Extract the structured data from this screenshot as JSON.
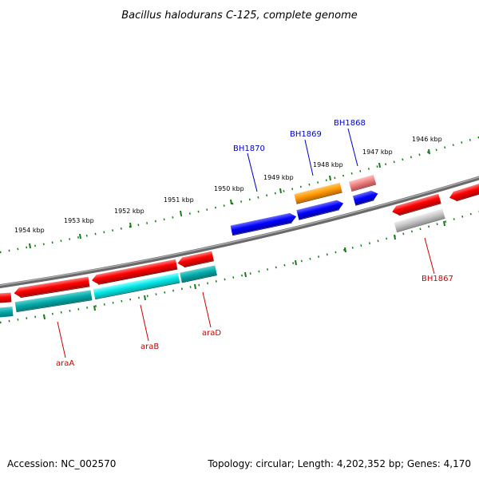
{
  "title": "Bacillus halodurans C-125, complete genome",
  "footer": {
    "accession": "Accession: NC_002570",
    "topology": "Topology: circular; Length: 4,202,352 bp; Genes: 4,170"
  },
  "colors": {
    "backbone": "#808080",
    "tick": "#1a7a1a",
    "label_forward": "#0000cc",
    "label_reverse": "#cc0000",
    "gene_red": "#ff0000",
    "gene_cyan": "#00d8d8",
    "gene_teal": "#00b0b0",
    "gene_blue": "#0000ff",
    "gene_orange": "#ff9900",
    "gene_pink": "#ef8080",
    "gene_gray": "#bdbdbd"
  },
  "scale_labels": [
    "1946 kbp",
    "1947 kbp",
    "1948 kbp",
    "1949 kbp",
    "1950 kbp",
    "1951 kbp",
    "1952 kbp",
    "1953 kbp",
    "1954 kbp"
  ],
  "gene_labels": [
    "BH1870",
    "BH1869",
    "BH1868",
    "BH1867",
    "araA",
    "araB",
    "araD"
  ]
}
